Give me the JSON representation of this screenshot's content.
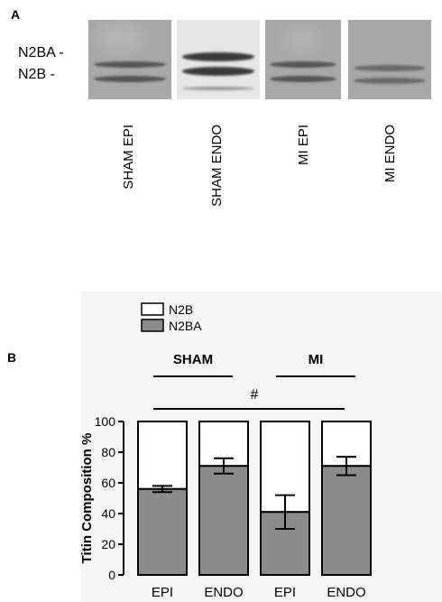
{
  "panel_a": {
    "letter": "A",
    "band_labels": [
      "N2BA -",
      "N2B -"
    ],
    "lanes": [
      "SHAM EPI",
      "SHAM ENDO",
      "MI EPI",
      "MI ENDO"
    ]
  },
  "panel_b": {
    "letter": "B"
  },
  "colors": {
    "n2ba_fill": "#8c8c8c",
    "n2b_fill": "#ffffff",
    "gel_background": "#a8a8a8"
  },
  "chart_data": {
    "type": "bar",
    "stacked": true,
    "categories": [
      "EPI",
      "ENDO",
      "EPI",
      "ENDO"
    ],
    "series": [
      {
        "name": "N2BA",
        "values": [
          56,
          71,
          41,
          71
        ],
        "error": [
          2,
          5,
          11,
          6
        ]
      },
      {
        "name": "N2B",
        "values": [
          44,
          29,
          59,
          29
        ]
      }
    ],
    "legend": [
      "N2B",
      "N2BA"
    ],
    "legend_position": "top-left",
    "ylabel": "Titin Composition %",
    "xlabel": "",
    "ylim": [
      0,
      100
    ],
    "yticks": [
      0,
      20,
      40,
      60,
      80,
      100
    ],
    "groups": [
      {
        "label": "SHAM",
        "spans": [
          0,
          1
        ]
      },
      {
        "label": "MI",
        "spans": [
          2,
          3
        ]
      }
    ],
    "significance": {
      "label": "#",
      "spans": [
        0,
        3
      ]
    },
    "grid": false
  }
}
